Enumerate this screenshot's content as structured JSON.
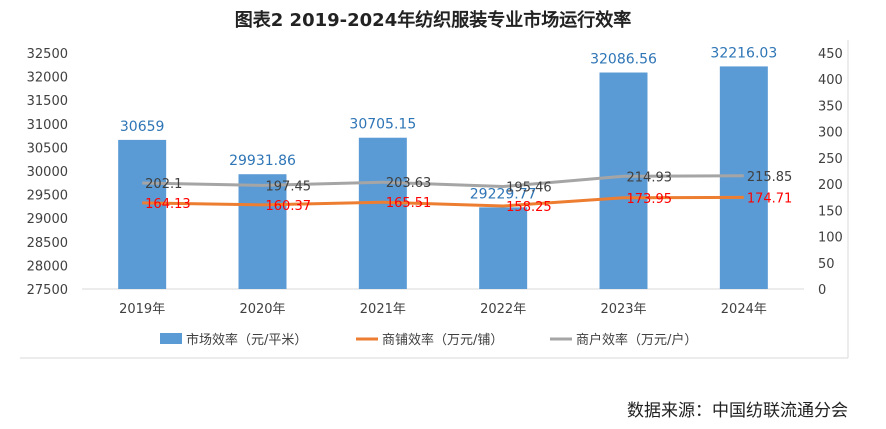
{
  "chart_data": {
    "type": "bar",
    "title": "图表2 2019-2024年纺织服装专业市场运行效率",
    "categories": [
      "2019年",
      "2020年",
      "2021年",
      "2022年",
      "2023年",
      "2024年"
    ],
    "series": [
      {
        "name": "市场效率（元/平米）",
        "kind": "bar",
        "axis": "left",
        "values": [
          30659,
          29931.86,
          30705.15,
          29229.77,
          32086.56,
          32216.03
        ],
        "labels": [
          "30659",
          "29931.86",
          "30705.15",
          "29229.77",
          "32086.56",
          "32216.03"
        ],
        "color": "#5B9BD5",
        "label_color": "#2E75B6"
      },
      {
        "name": "商铺效率（万元/铺）",
        "kind": "line",
        "axis": "right",
        "values": [
          164.13,
          160.37,
          165.51,
          158.25,
          173.95,
          174.71
        ],
        "labels": [
          "164.13",
          "160.37",
          "165.51",
          "158.25",
          "173.95",
          "174.71"
        ],
        "color": "#ED7D31",
        "label_color": "#FF0000"
      },
      {
        "name": "商户效率（万元/户）",
        "kind": "line",
        "axis": "right",
        "values": [
          202.1,
          197.45,
          203.63,
          195.46,
          214.93,
          215.85
        ],
        "labels": [
          "202.1",
          "197.45",
          "203.63",
          "195.46",
          "214.93",
          "215.85"
        ],
        "color": "#A5A5A5",
        "label_color": "#404040"
      }
    ],
    "left_axis": {
      "ylim": [
        27500,
        32500
      ],
      "ticks": [
        "27500",
        "28000",
        "28500",
        "29000",
        "29500",
        "30000",
        "30500",
        "31000",
        "31500",
        "32000",
        "32500"
      ]
    },
    "right_axis": {
      "ylim": [
        0,
        450
      ],
      "ticks": [
        "0",
        "50",
        "100",
        "150",
        "200",
        "250",
        "300",
        "350",
        "400",
        "450"
      ]
    },
    "grid": false,
    "legend_position": "bottom"
  },
  "source": "数据来源：中国纺联流通分会"
}
